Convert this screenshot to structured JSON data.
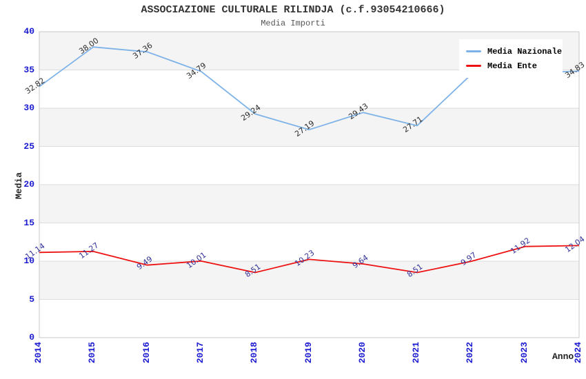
{
  "header": {
    "title": "ASSOCIAZIONE CULTURALE RILINDJA (c.f.93054210666)",
    "subtitle": "Media Importi"
  },
  "style": {
    "title_color": "#333333",
    "subtitle_color": "#555555",
    "tick_label_color": "#1a1ad0",
    "axis_title_color": "#222222",
    "plot_border": "#c8c8c8",
    "gridline": "#dcdcdc",
    "legend_bg": "#ffffff",
    "background": "#ffffff"
  },
  "chart_data": {
    "type": "line",
    "title": "ASSOCIAZIONE CULTURALE RILINDJA (c.f.93054210666)",
    "subtitle": "Media Importi",
    "xlabel": "Anno",
    "ylabel": "Media",
    "categories": [
      "2014",
      "2015",
      "2016",
      "2017",
      "2018",
      "2019",
      "2020",
      "2021",
      "2022",
      "2023",
      "2024"
    ],
    "ylim": [
      0,
      40
    ],
    "ytick_step": 5,
    "grid": true,
    "band_colors": [
      "#ffffff",
      "#f4f4f4"
    ],
    "legend_position": "top-right",
    "series": [
      {
        "name": "Media Nazionale",
        "color": "#7db2e8",
        "values": [
          32.82,
          38.0,
          37.36,
          34.79,
          29.24,
          27.19,
          29.43,
          27.71,
          34.4,
          34.65,
          34.83
        ],
        "labels": [
          "32.82",
          "38.00",
          "37.36",
          "34.79",
          "29.24",
          "27.19",
          "29.43",
          "27.71",
          "",
          "",
          "34.83"
        ],
        "label_color": "#2b2b2b"
      },
      {
        "name": "Media Ente",
        "color": "#ee1111",
        "values": [
          11.14,
          11.27,
          9.49,
          10.01,
          8.51,
          10.23,
          9.64,
          8.51,
          9.97,
          11.92,
          12.04
        ],
        "labels": [
          "11.14",
          "11.27",
          "9.49",
          "10.01",
          "8.51",
          "10.23",
          "9.64",
          "8.51",
          "9.97",
          "11.92",
          "12.04"
        ],
        "label_color": "#333399"
      }
    ]
  }
}
